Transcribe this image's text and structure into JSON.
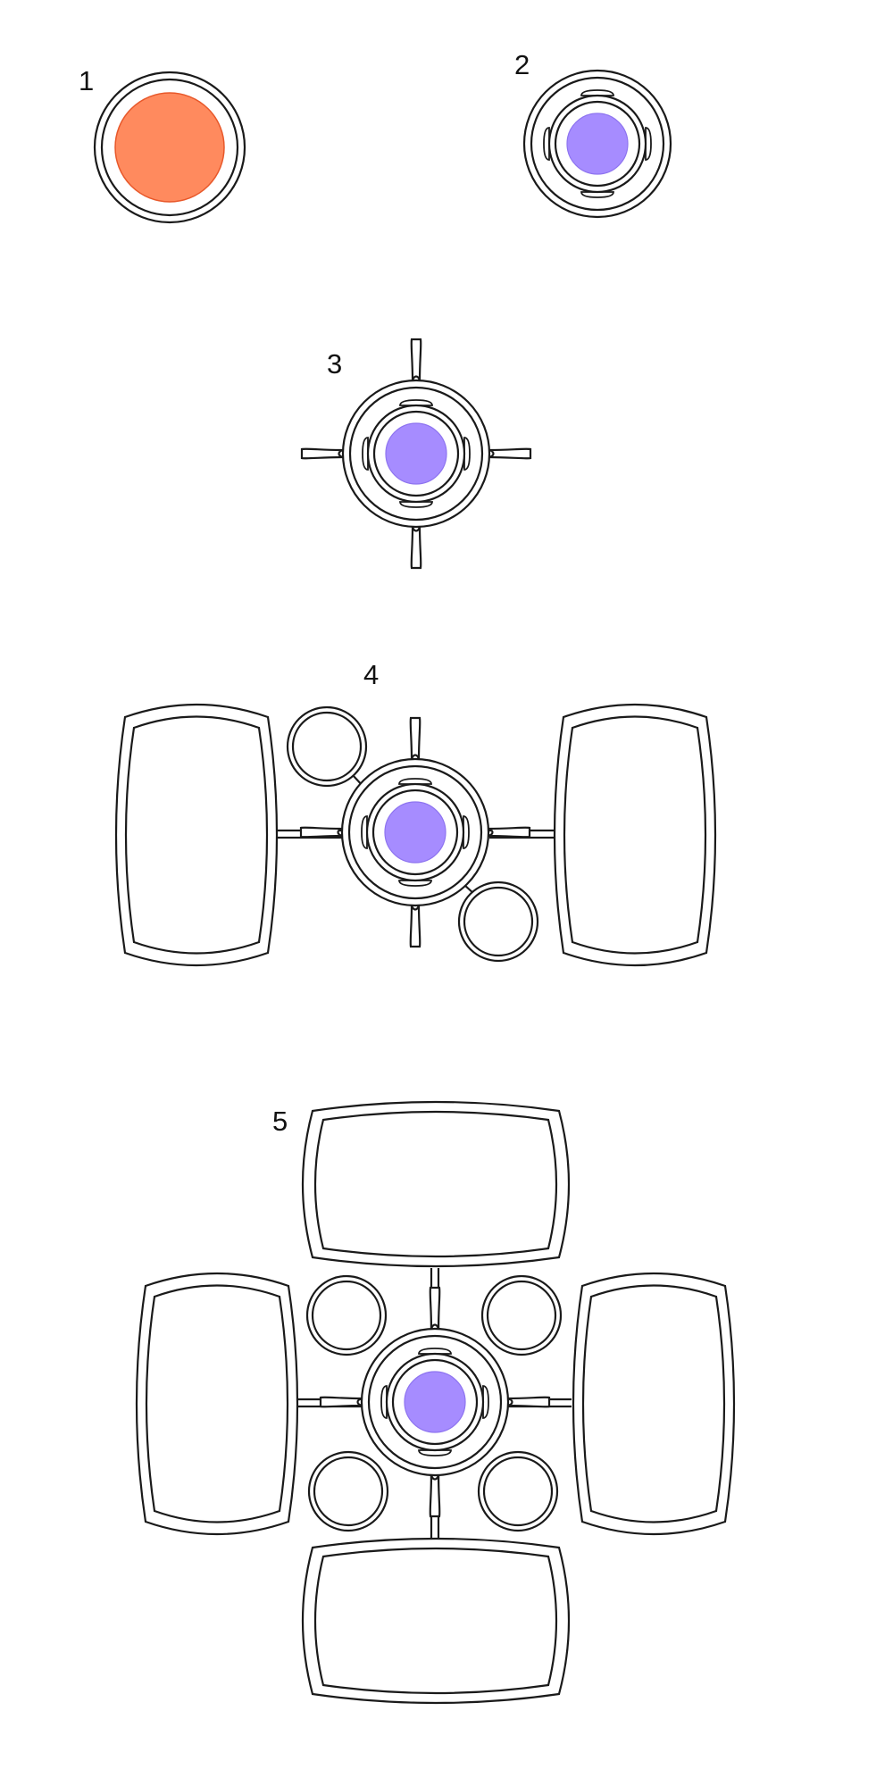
{
  "stages": [
    {
      "label": "1"
    },
    {
      "label": "2"
    },
    {
      "label": "3"
    },
    {
      "label": "4"
    },
    {
      "label": "5"
    }
  ],
  "colors": {
    "stage1_core_fill": "#ff8a5e",
    "stage1_core_stroke": "#e8582a",
    "core_fill": "#a68cff",
    "core_stroke": "#8e74f0",
    "line": "#1a1a1a"
  }
}
